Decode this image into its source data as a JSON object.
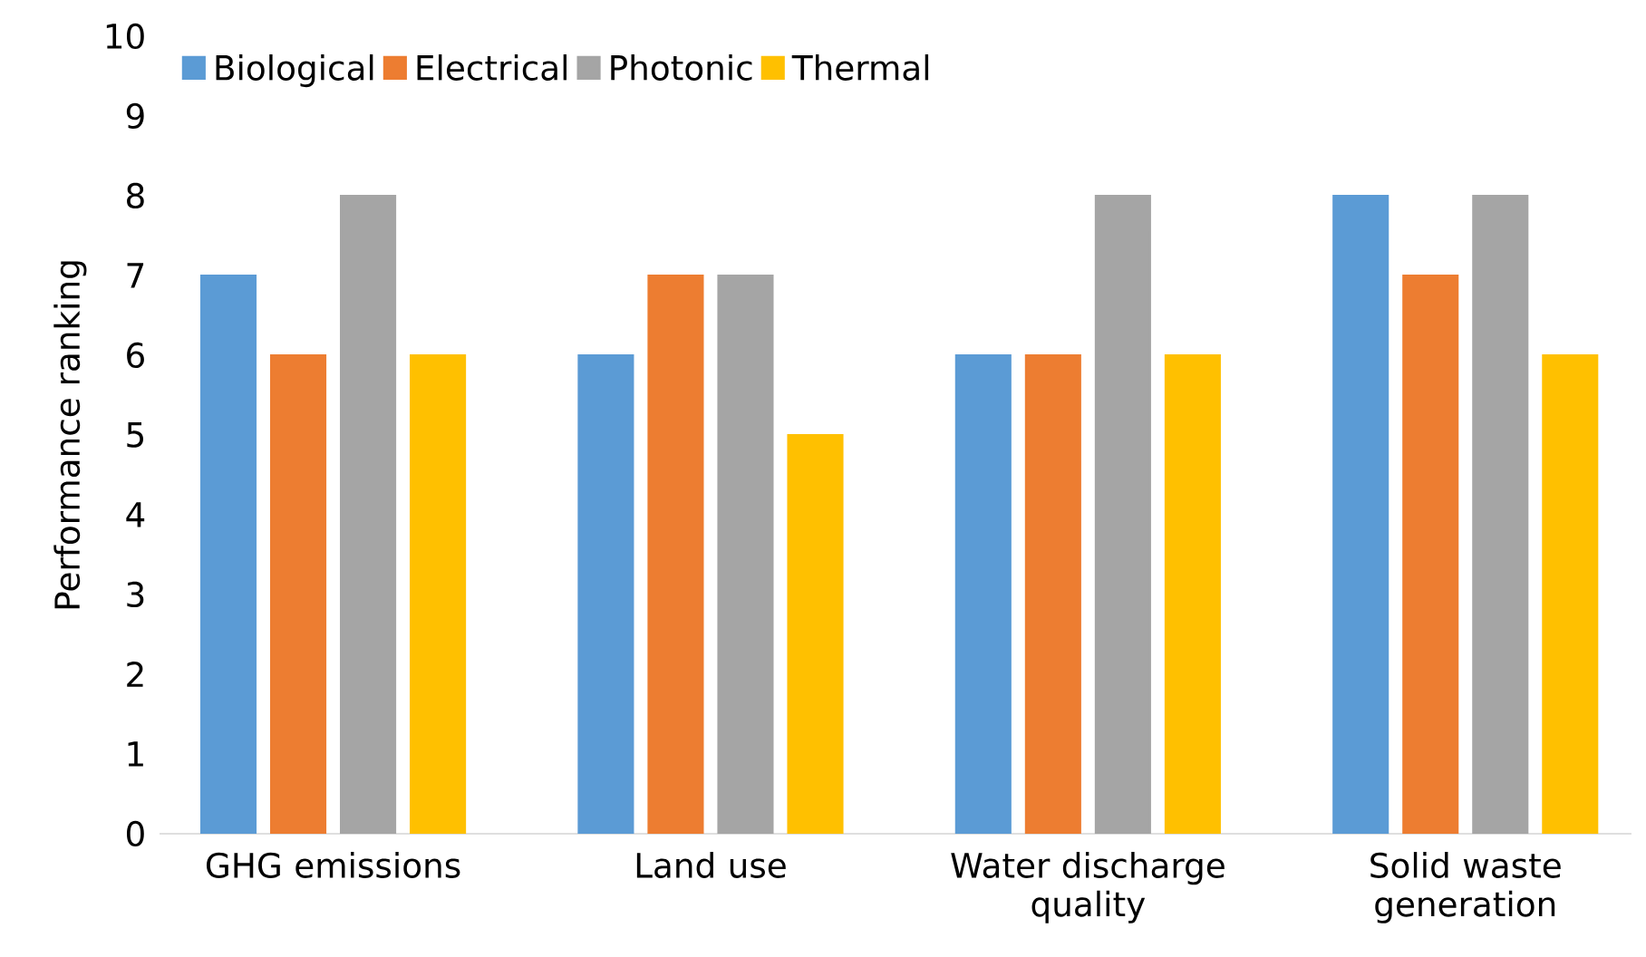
{
  "chart_data": {
    "type": "bar",
    "ylabel": "Performance ranking",
    "categories": [
      "GHG emissions",
      "Land use",
      "Water discharge quality",
      "Solid waste generation"
    ],
    "series": [
      {
        "name": "Biological",
        "color": "#5b9bd5",
        "values": [
          7,
          6,
          6,
          8
        ]
      },
      {
        "name": "Electrical",
        "color": "#ed7d31",
        "values": [
          6,
          7,
          6,
          7
        ]
      },
      {
        "name": "Photonic",
        "color": "#a5a5a5",
        "values": [
          8,
          7,
          8,
          8
        ]
      },
      {
        "name": "Thermal",
        "color": "#ffc000",
        "values": [
          6,
          5,
          6,
          6
        ]
      }
    ],
    "ylim": [
      0,
      10
    ],
    "yticks": [
      0,
      1,
      2,
      3,
      4,
      5,
      6,
      7,
      8,
      9,
      10
    ],
    "legend": "top left"
  }
}
